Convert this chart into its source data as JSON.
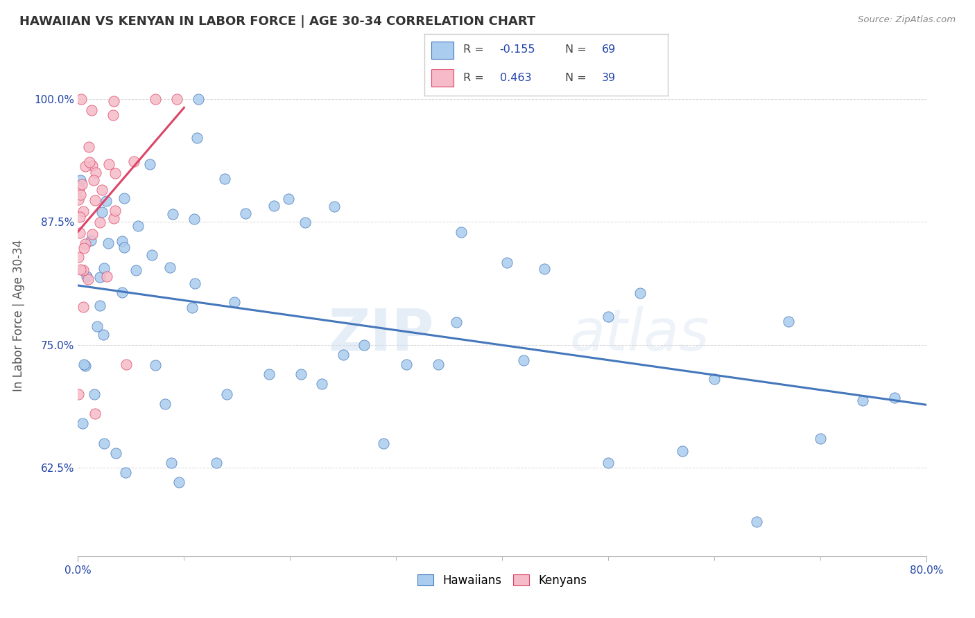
{
  "title": "HAWAIIAN VS KENYAN IN LABOR FORCE | AGE 30-34 CORRELATION CHART",
  "source": "Source: ZipAtlas.com",
  "ylabel": "In Labor Force | Age 30-34",
  "xmin": 0.0,
  "xmax": 0.8,
  "ymin": 0.535,
  "ymax": 1.025,
  "xticks_major": [
    0.0,
    0.8
  ],
  "xtick_major_labels": [
    "0.0%",
    "80.0%"
  ],
  "xticks_minor": [
    0.1,
    0.2,
    0.3,
    0.4,
    0.5,
    0.6,
    0.7
  ],
  "yticks": [
    0.625,
    0.75,
    0.875,
    1.0
  ],
  "ytick_labels": [
    "62.5%",
    "75.0%",
    "87.5%",
    "100.0%"
  ],
  "legend_r_hawaiian": "-0.155",
  "legend_n_hawaiian": "69",
  "legend_r_kenyan": "0.463",
  "legend_n_kenyan": "39",
  "hawaiian_color": "#aaccee",
  "kenyan_color": "#f5bbc8",
  "hawaiian_line_color": "#4477bb",
  "kenyan_line_color": "#dd4466",
  "watermark_zip": "ZIP",
  "watermark_atlas": "atlas",
  "legend_label_hawaiians": "Hawaiians",
  "legend_label_kenyans": "Kenyans",
  "haw_seed": 42,
  "ken_seed": 99
}
